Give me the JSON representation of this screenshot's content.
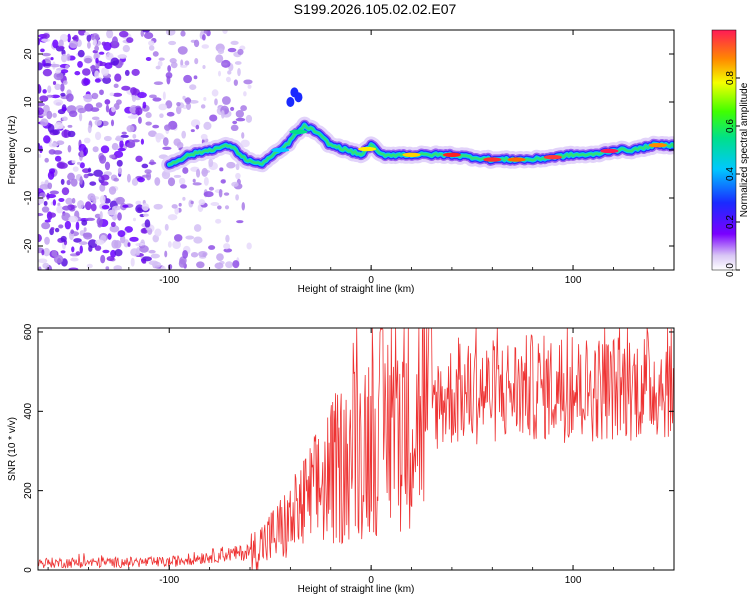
{
  "title": "S199.2026.105.02.02.E07",
  "chart_data": [
    {
      "type": "heatmap",
      "name": "spectrogram",
      "xlabel": "Height of straight line (km)",
      "ylabel": "Frequency (Hz)",
      "xlim": [
        -165,
        150
      ],
      "ylim": [
        -25,
        25
      ],
      "xticks": [
        -100,
        0,
        100
      ],
      "yticks": [
        -20,
        -10,
        0,
        10,
        20
      ],
      "colorbar": {
        "label": "Normalized spectral amplitude",
        "range": [
          0,
          1
        ],
        "ticks": [
          0.0,
          0.2,
          0.4,
          0.6,
          0.8
        ]
      },
      "ridge": {
        "x": [
          -100,
          -90,
          -80,
          -70,
          -62,
          -55,
          -48,
          -42,
          -38,
          -33,
          -28,
          -20,
          -12,
          -5,
          0,
          5,
          10,
          20,
          40,
          60,
          80,
          100,
          110,
          120,
          130,
          140,
          150
        ],
        "y": [
          -3,
          -1,
          0,
          1,
          -2,
          -3,
          -1,
          1,
          3,
          5,
          4,
          1,
          0,
          -1,
          1,
          -1,
          -1,
          -1,
          -1,
          -2,
          -2,
          -1,
          -1,
          0,
          0,
          1,
          1
        ]
      },
      "noise_region_km": [
        -165,
        -60
      ]
    },
    {
      "type": "line",
      "name": "snr",
      "xlabel": "Height of straight line (km)",
      "ylabel": "SNR (10 * v/v)",
      "xlim": [
        -165,
        150
      ],
      "ylim": [
        0,
        610
      ],
      "xticks": [
        -100,
        0,
        100
      ],
      "yticks": [
        0,
        200,
        400,
        600
      ],
      "series_color": "#ee3333",
      "envelope": {
        "x": [
          -165,
          -100,
          -80,
          -60,
          -50,
          -40,
          -30,
          -20,
          -10,
          0,
          10,
          20,
          30,
          40,
          60,
          80,
          100,
          120,
          150
        ],
        "y": [
          18,
          20,
          35,
          45,
          80,
          120,
          180,
          240,
          290,
          340,
          370,
          400,
          420,
          440,
          450,
          460,
          455,
          460,
          470
        ]
      },
      "peak_max": 610
    }
  ]
}
